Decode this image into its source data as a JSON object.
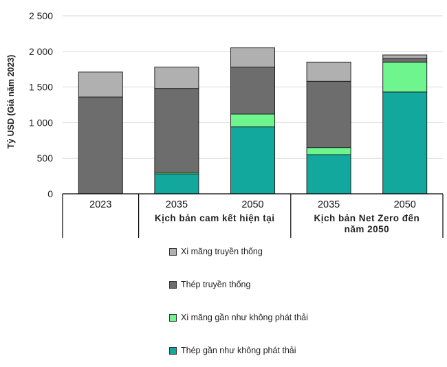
{
  "chart_data": {
    "type": "bar",
    "stacked": true,
    "ylabel": "Tỷ USD (Giá năm 2023)",
    "ylim": [
      0,
      2500
    ],
    "yticks": [
      0,
      500,
      1000,
      1500,
      2000,
      2500
    ],
    "ytick_labels": [
      "0",
      "500",
      "1 000",
      "1 500",
      "2 000",
      "2 500"
    ],
    "grid": true,
    "legend_position": "bottom",
    "categories": [
      "2023",
      "2035",
      "2050",
      "2035",
      "2050"
    ],
    "groups": [
      {
        "label": "",
        "categories": [
          0
        ]
      },
      {
        "label": "Kịch bản cam kết hiện tại",
        "categories": [
          1,
          2
        ]
      },
      {
        "label": "Kịch bản Net Zero đến năm 2050",
        "label_lines": [
          "Kịch bản Net Zero đến",
          "năm 2050"
        ],
        "categories": [
          3,
          4
        ]
      }
    ],
    "series": [
      {
        "name": "Thép gần như không phát thải",
        "color": "#13a89e",
        "values": [
          0,
          280,
          940,
          550,
          1430
        ]
      },
      {
        "name": "Xi măng gần như không phát thải",
        "color": "#6ef58e",
        "values": [
          0,
          20,
          180,
          100,
          420
        ]
      },
      {
        "name": "Thép truyền thống",
        "color": "#6d6d6d",
        "values": [
          1360,
          1180,
          660,
          930,
          50
        ]
      },
      {
        "name": "Xi măng truyền thống",
        "color": "#b0b0b0",
        "values": [
          350,
          300,
          270,
          270,
          50
        ]
      }
    ]
  },
  "legend_order": [
    3,
    2,
    1,
    0
  ]
}
